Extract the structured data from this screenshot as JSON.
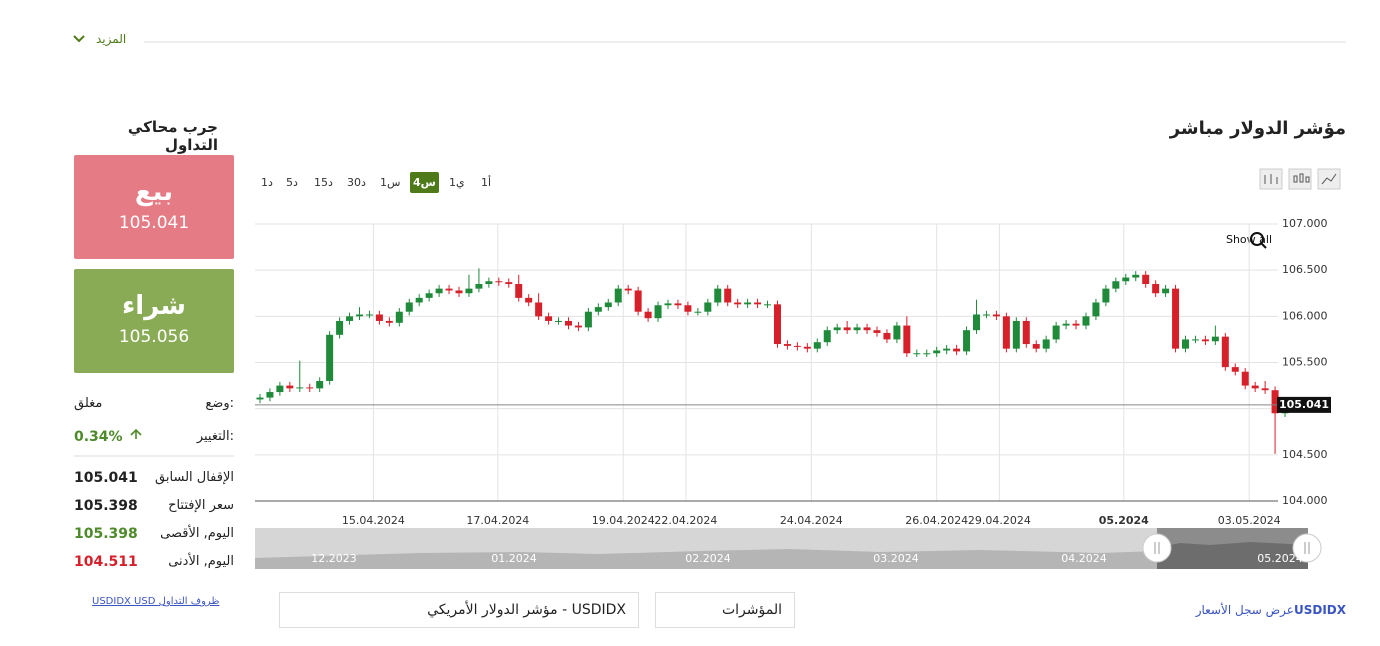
{
  "more": "المزيد",
  "title": "مؤشر الدولار مباشر",
  "timeframes": {
    "items": [
      "1د",
      "5د",
      "15د",
      "30د",
      "1س",
      "4س",
      "1ي",
      "1أ"
    ],
    "active": 5
  },
  "show_all": "Show all",
  "chart_data": {
    "type": "candlestick",
    "up_color": "#1e8a3a",
    "down_color": "#d6202a",
    "open": [
      105.1,
      105.12,
      105.18,
      105.25,
      105.22,
      105.23,
      105.22,
      105.3,
      105.8,
      105.95,
      106.0,
      106.02,
      106.02,
      105.95,
      105.93,
      106.05,
      106.15,
      106.2,
      106.25,
      106.3,
      106.28,
      106.25,
      106.3,
      106.35,
      106.38,
      106.37,
      106.35,
      106.2,
      106.15,
      106.0,
      105.95,
      105.95,
      105.9,
      105.88,
      106.05,
      106.1,
      106.15,
      106.3,
      106.28,
      106.05,
      105.98,
      106.12,
      106.14,
      106.12,
      106.05,
      106.05,
      106.15,
      106.3,
      106.15,
      106.13,
      106.15,
      106.13,
      106.13,
      105.7,
      105.68,
      105.67,
      105.65,
      105.72,
      105.85,
      105.88,
      105.85,
      105.88,
      105.85,
      105.82,
      105.75,
      105.9,
      105.6,
      105.6,
      105.6,
      105.63,
      105.65,
      105.62,
      105.85,
      106.02,
      106.02,
      106.0,
      105.65,
      105.95,
      105.7,
      105.65,
      105.75,
      105.9,
      105.92,
      105.9,
      106.0,
      106.15,
      106.3,
      106.38,
      106.42,
      106.45,
      106.35,
      106.25,
      106.3,
      105.65,
      105.75,
      105.75,
      105.73,
      105.78,
      105.45,
      105.4,
      105.25,
      105.22,
      105.2,
      104.95
    ],
    "high": [
      105.16,
      105.22,
      105.29,
      105.29,
      105.52,
      105.27,
      105.34,
      105.84,
      105.99,
      106.04,
      106.1,
      106.06,
      106.06,
      105.99,
      106.09,
      106.19,
      106.24,
      106.29,
      106.34,
      106.34,
      106.32,
      106.45,
      106.52,
      106.42,
      106.42,
      106.41,
      106.45,
      106.24,
      106.25,
      106.04,
      105.99,
      105.99,
      105.94,
      106.09,
      106.14,
      106.19,
      106.34,
      106.34,
      106.32,
      106.09,
      106.16,
      106.18,
      106.18,
      106.16,
      106.09,
      106.19,
      106.34,
      106.34,
      106.19,
      106.19,
      106.19,
      106.17,
      106.17,
      105.74,
      105.72,
      105.71,
      105.76,
      105.89,
      105.92,
      105.95,
      105.92,
      105.92,
      105.89,
      105.86,
      105.94,
      106.0,
      105.64,
      105.64,
      105.67,
      105.69,
      105.69,
      105.89,
      106.18,
      106.06,
      106.06,
      106.04,
      105.99,
      105.99,
      105.74,
      105.79,
      105.94,
      105.96,
      105.96,
      106.04,
      106.19,
      106.34,
      106.42,
      106.46,
      106.49,
      106.49,
      106.39,
      106.34,
      106.34,
      105.79,
      105.79,
      105.79,
      105.9,
      105.82,
      105.49,
      105.44,
      105.29,
      105.3,
      105.24,
      105.08
    ],
    "low": [
      105.06,
      105.08,
      105.14,
      105.18,
      105.18,
      105.18,
      105.18,
      105.26,
      105.76,
      105.91,
      105.96,
      105.98,
      105.91,
      105.89,
      105.89,
      106.01,
      106.11,
      106.16,
      106.21,
      106.24,
      106.21,
      106.21,
      106.26,
      106.31,
      106.33,
      106.31,
      106.16,
      106.11,
      105.96,
      105.91,
      105.91,
      105.86,
      105.84,
      105.84,
      106.01,
      106.06,
      106.11,
      106.24,
      106.01,
      105.94,
      105.94,
      106.08,
      106.08,
      106.01,
      106.01,
      106.01,
      106.11,
      106.11,
      106.09,
      106.09,
      106.09,
      106.09,
      105.66,
      105.64,
      105.63,
      105.61,
      105.61,
      105.68,
      105.81,
      105.81,
      105.81,
      105.81,
      105.78,
      105.71,
      105.71,
      105.56,
      105.56,
      105.56,
      105.56,
      105.59,
      105.58,
      105.58,
      105.81,
      105.98,
      105.96,
      105.61,
      105.61,
      105.66,
      105.61,
      105.61,
      105.71,
      105.86,
      105.86,
      105.86,
      105.96,
      106.11,
      106.26,
      106.34,
      106.38,
      106.31,
      106.21,
      106.21,
      105.61,
      105.61,
      105.71,
      105.69,
      105.69,
      105.41,
      105.36,
      105.21,
      105.18,
      105.16,
      104.51,
      104.91
    ],
    "close": [
      105.12,
      105.18,
      105.25,
      105.22,
      105.23,
      105.22,
      105.3,
      105.8,
      105.95,
      106.0,
      106.02,
      106.02,
      105.95,
      105.93,
      106.05,
      106.15,
      106.2,
      106.25,
      106.3,
      106.28,
      106.25,
      106.3,
      106.35,
      106.38,
      106.37,
      106.35,
      106.2,
      106.15,
      106.0,
      105.95,
      105.95,
      105.9,
      105.88,
      106.05,
      106.1,
      106.15,
      106.3,
      106.28,
      106.05,
      105.98,
      106.12,
      106.14,
      106.12,
      106.05,
      106.05,
      106.15,
      106.3,
      106.15,
      106.13,
      106.15,
      106.13,
      106.13,
      105.7,
      105.68,
      105.67,
      105.65,
      105.72,
      105.85,
      105.88,
      105.85,
      105.88,
      105.85,
      105.82,
      105.75,
      105.9,
      105.6,
      105.6,
      105.6,
      105.63,
      105.65,
      105.62,
      105.85,
      106.02,
      106.02,
      106.0,
      105.65,
      105.95,
      105.7,
      105.65,
      105.75,
      105.9,
      105.92,
      105.9,
      106.0,
      106.15,
      106.3,
      106.38,
      106.42,
      106.45,
      106.35,
      106.25,
      106.3,
      105.65,
      105.75,
      105.75,
      105.73,
      105.78,
      105.45,
      105.4,
      105.25,
      105.22,
      105.2,
      104.95,
      105.04
    ],
    "xlim": [
      -0.5,
      103.5
    ],
    "xticks": [
      {
        "value": 11.4,
        "label": "15.04.2024"
      },
      {
        "value": 23.9,
        "label": "17.04.2024"
      },
      {
        "value": 36.5,
        "label": "19.04.2024"
      },
      {
        "value": 42.8,
        "label": "22.04.2024"
      },
      {
        "value": 55.4,
        "label": "24.04.2024"
      },
      {
        "value": 68.0,
        "label": "26.04.2024"
      },
      {
        "value": 74.3,
        "label": "29.04.2024"
      },
      {
        "value": 86.8,
        "label": "05.2024"
      },
      {
        "value": 99.4,
        "label": "03.05.2024"
      }
    ],
    "ylim": [
      104,
      107
    ],
    "yticks": [
      {
        "value": 104,
        "label": "104.000"
      },
      {
        "value": 104.5,
        "label": "104.500"
      },
      {
        "value": 105,
        "label": "105.000"
      },
      {
        "value": 105.5,
        "label": "105.500"
      },
      {
        "value": 106,
        "label": "106.000"
      },
      {
        "value": 106.5,
        "label": "106.500"
      },
      {
        "value": 107,
        "label": "107.000"
      }
    ],
    "last_price": 105.041,
    "grid": true
  },
  "navigator": {
    "labels": [
      "12.2023",
      "01.2024",
      "02.2024",
      "03.2024",
      "04.2024",
      "05.2024"
    ]
  },
  "panel": {
    "title": "جرب محاكي التداول",
    "sell": {
      "label": "بيع",
      "price": "105.041"
    },
    "buy": {
      "label": "شراء",
      "price": "105.056"
    },
    "status": {
      "label": "وضع:",
      "value": "مغلق"
    },
    "change": {
      "label": "التغيير:",
      "value": "0.34%"
    },
    "rows": [
      {
        "label": "الإقفال السابق",
        "value": "105.041"
      },
      {
        "label": "سعر الإفتتاح",
        "value": "105.398"
      },
      {
        "label": "اليوم, الأقصى",
        "value": "105.398"
      },
      {
        "label": "اليوم, الأدنى",
        "value": "104.511"
      }
    ],
    "link": "USDIDX USD ظروف التداول"
  },
  "selects": {
    "instrument": "USDIDX - مؤشر الدولار الأمريكي",
    "category": "المؤشرات"
  },
  "history": {
    "text": "عرض سجل الأسعار",
    "symbol": "USDIDX"
  }
}
